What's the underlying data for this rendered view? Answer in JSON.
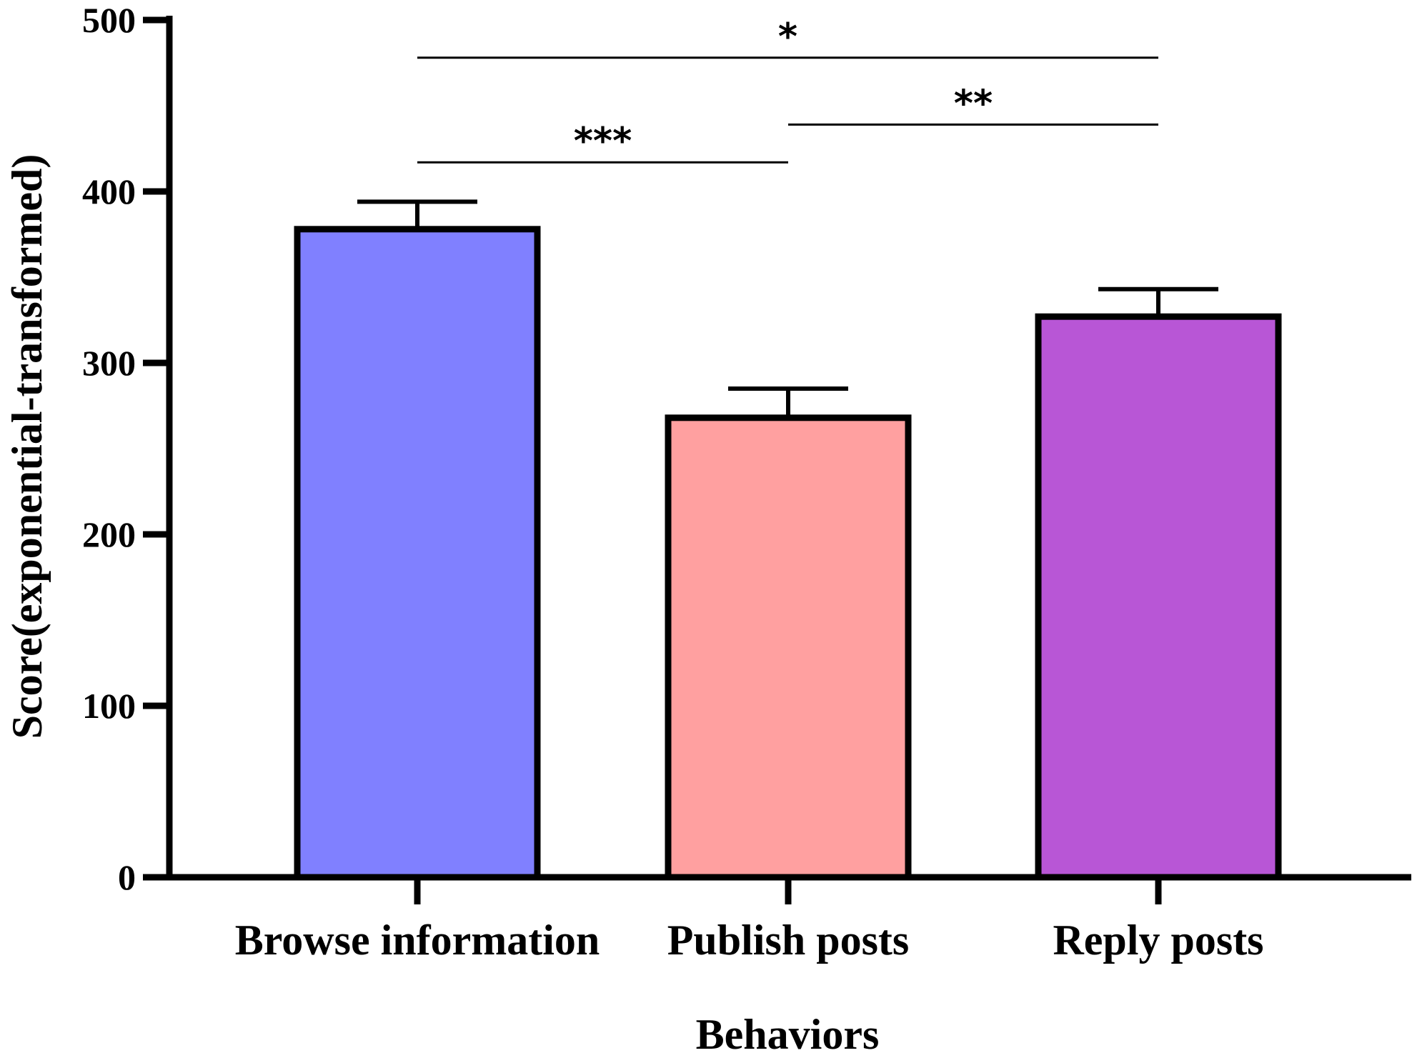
{
  "chart_data": {
    "type": "bar",
    "categories": [
      "Browse information",
      "Publish posts",
      "Reply posts"
    ],
    "values": [
      378,
      268,
      327
    ],
    "error_upper": [
      394,
      285,
      343
    ],
    "colors": [
      "#8080ff",
      "#ffa0a0",
      "#b856d6"
    ],
    "xlabel": "Behaviors",
    "ylabel": "Score(exponential-transformed)",
    "ylim": [
      0,
      500
    ],
    "yticks": [
      "0",
      "100",
      "200",
      "300",
      "400",
      "500"
    ],
    "grid": false,
    "significance": [
      {
        "from": 0,
        "to": 2,
        "label": "*",
        "y": 478
      },
      {
        "from": 1,
        "to": 2,
        "label": "**",
        "y": 439
      },
      {
        "from": 0,
        "to": 1,
        "label": "***",
        "y": 417
      }
    ]
  }
}
